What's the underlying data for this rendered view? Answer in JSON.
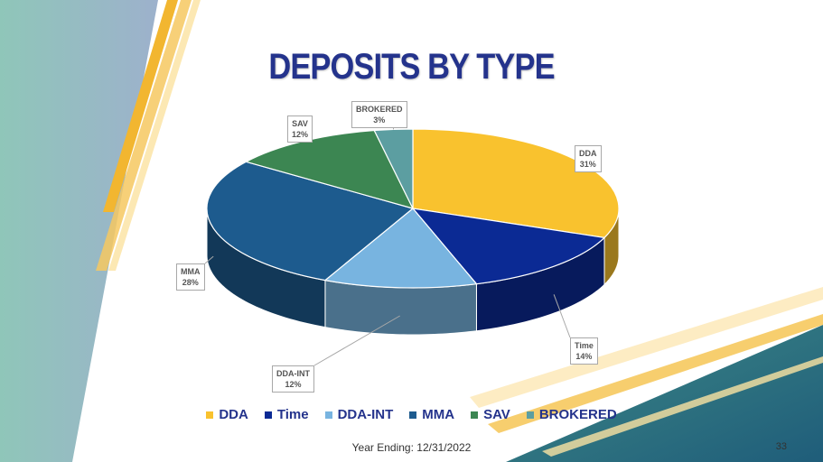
{
  "slide": {
    "title": "DEPOSITS BY TYPE",
    "footer": "Year Ending: 12/31/2022",
    "page_number": "33"
  },
  "chart_data": {
    "type": "pie",
    "categories": [
      "DDA",
      "Time",
      "DDA-INT",
      "MMA",
      "SAV",
      "BROKERED"
    ],
    "values": [
      31,
      14,
      12,
      28,
      12,
      3
    ],
    "value_labels": [
      "31%",
      "14%",
      "12%",
      "28%",
      "12%",
      "3%"
    ],
    "colors": [
      "#f9c22e",
      "#0b2a94",
      "#78b4e0",
      "#1d5b8e",
      "#3c8652",
      "#5c9ea1"
    ],
    "legend_position": "bottom",
    "three_d": true
  }
}
